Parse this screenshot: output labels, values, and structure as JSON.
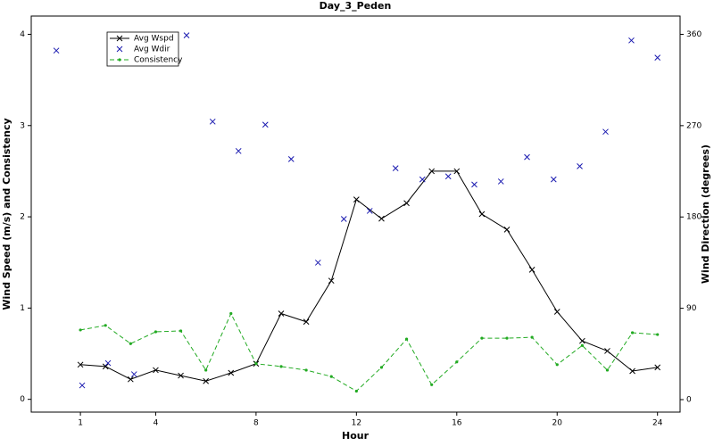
{
  "chart_data": {
    "type": "line",
    "title": "Day_3_Peden",
    "xlabel": "Hour",
    "ylabel": "Wind Speed (m/s) and Consistency",
    "y2label": "Wind Direction (degrees)",
    "x": [
      1,
      2,
      3,
      4,
      5,
      6,
      7,
      8,
      9,
      10,
      11,
      12,
      13,
      14,
      15,
      16,
      17,
      18,
      19,
      20,
      21,
      22,
      23,
      24
    ],
    "xlim": [
      -0.96,
      24.9
    ],
    "xticks": [
      1,
      4,
      8,
      12,
      16,
      20,
      24
    ],
    "ylim": [
      -0.14,
      4.2
    ],
    "yticks": [
      0,
      1,
      2,
      3,
      4
    ],
    "y2lim": [
      -12.3,
      378
    ],
    "y2ticks": [
      0,
      90,
      180,
      270,
      360
    ],
    "grid": false,
    "legend": "upper left",
    "series": [
      {
        "name": "Avg Wspd",
        "color": "#000000",
        "marker": "x",
        "line_style": "solid",
        "values": [
          0.38,
          0.36,
          0.22,
          0.32,
          0.26,
          0.2,
          0.29,
          0.39,
          0.94,
          0.85,
          1.3,
          2.19,
          1.98,
          2.15,
          2.5,
          2.5,
          2.03,
          1.86,
          1.42,
          0.96,
          0.64,
          0.53,
          0.31,
          0.35
        ]
      },
      {
        "name": "Avg Wdir",
        "color": "#1a1ab0",
        "marker": "x",
        "line_style": "none",
        "axis": "y2",
        "x": [
          0.04,
          1.07,
          2.1,
          3.14,
          5.23,
          6.27,
          7.3,
          8.37,
          9.4,
          10.47,
          11.5,
          12.53,
          13.56,
          14.63,
          15.66,
          16.7,
          17.76,
          18.8,
          19.86,
          20.9,
          21.93,
          22.96,
          24
        ],
        "values": [
          344,
          14,
          36,
          25,
          359,
          274,
          245,
          271,
          237,
          135,
          178,
          186,
          228,
          217,
          220,
          212,
          215,
          239,
          217,
          230,
          264,
          354,
          337
        ]
      },
      {
        "name": "Consistency",
        "color": "#22aa22",
        "marker": "dot",
        "line_style": "dashed",
        "values": [
          0.76,
          0.81,
          0.61,
          0.74,
          0.75,
          0.32,
          0.94,
          0.39,
          0.36,
          0.32,
          0.25,
          0.09,
          0.35,
          0.66,
          0.16,
          0.41,
          0.67,
          0.67,
          0.68,
          0.38,
          0.59,
          0.32,
          0.73,
          0.71
        ]
      }
    ]
  }
}
